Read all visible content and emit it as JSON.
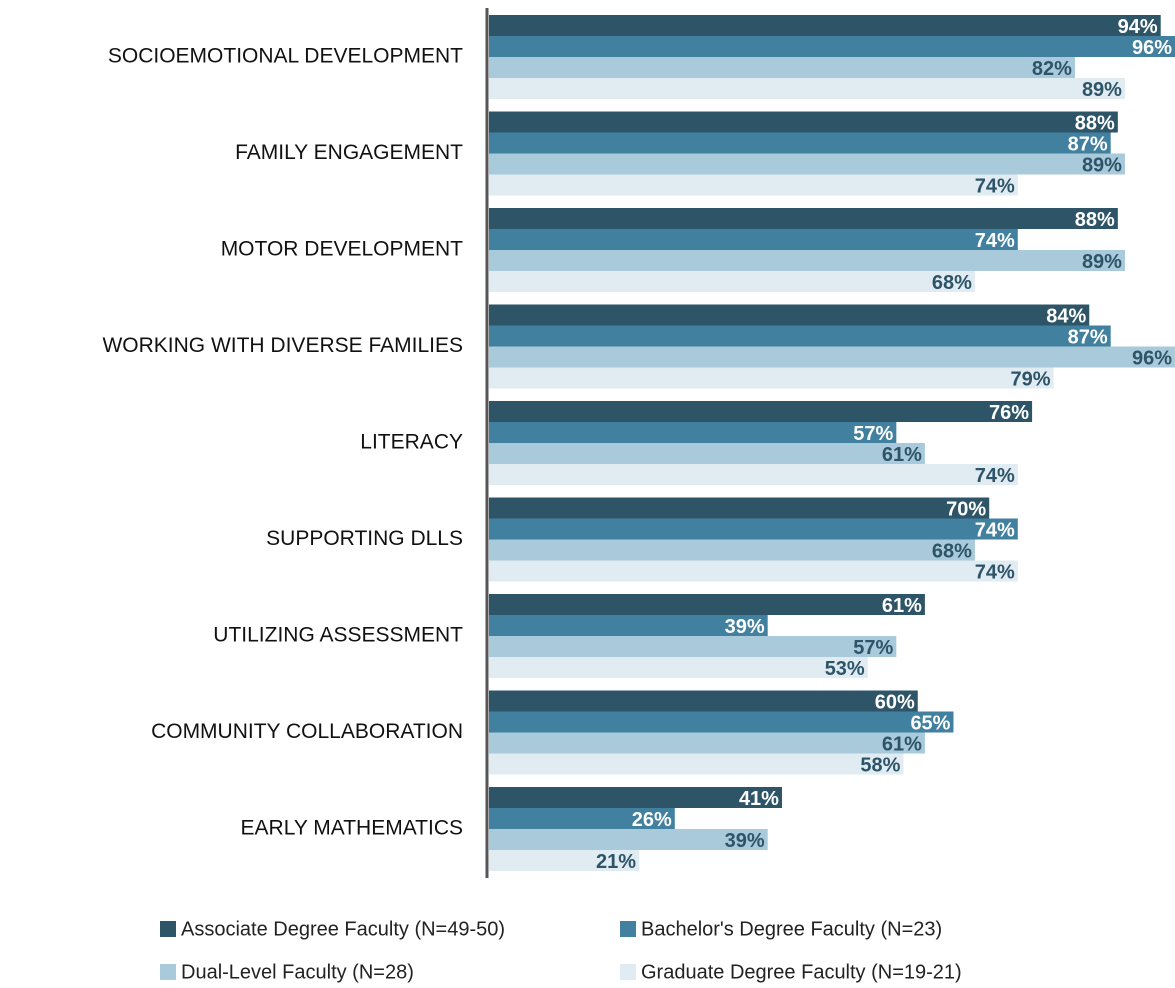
{
  "chart_data": {
    "type": "barh",
    "categories": [
      "SOCIOEMOTIONAL DEVELOPMENT",
      "FAMILY ENGAGEMENT",
      "MOTOR DEVELOPMENT",
      "WORKING WITH DIVERSE FAMILIES",
      "LITERACY",
      "SUPPORTING DLLS",
      "UTILIZING ASSESSMENT",
      "COMMUNITY COLLABORATION",
      "EARLY MATHEMATICS"
    ],
    "series": [
      {
        "name": "Associate Degree Faculty (N=49-50)",
        "color": "#2e5468",
        "label_color": "#ffffff",
        "values": [
          94,
          88,
          88,
          84,
          76,
          70,
          61,
          60,
          41
        ],
        "value_labels": [
          "94%",
          "88%",
          "88%",
          "84%",
          "76%",
          "70%",
          "61%",
          "60%",
          "41%"
        ]
      },
      {
        "name": "Bachelor's Degree Faculty (N=23)",
        "color": "#41809e",
        "label_color": "#ffffff",
        "values": [
          96,
          87,
          74,
          87,
          57,
          74,
          39,
          65,
          26
        ],
        "value_labels": [
          "96%",
          "87%",
          "74%",
          "87%",
          "57%",
          "74%",
          "39%",
          "65%",
          "26%"
        ]
      },
      {
        "name": "Dual-Level Faculty (N=28)",
        "color": "#a8cadb",
        "label_color": "#2e5468",
        "values": [
          82,
          89,
          89,
          96,
          61,
          68,
          57,
          61,
          39
        ],
        "value_labels": [
          "82%",
          "89%",
          "89%",
          "96%",
          "61%",
          "68%",
          "57%",
          "61%",
          "39%"
        ]
      },
      {
        "name": "Graduate Degree Faculty (N=19-21)",
        "color": "#e1ebf2",
        "label_color": "#2e5468",
        "values": [
          89,
          74,
          68,
          79,
          74,
          74,
          53,
          58,
          21
        ],
        "value_labels": [
          "89%",
          "74%",
          "68%",
          "79%",
          "74%",
          "74%",
          "53%",
          "58%",
          "21%"
        ]
      }
    ],
    "xlim": [
      0,
      96
    ],
    "legend": "bottom"
  }
}
